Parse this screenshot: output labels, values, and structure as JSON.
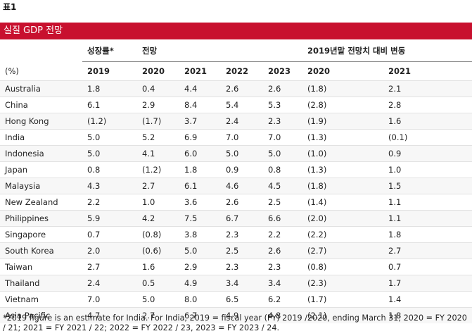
{
  "label": "표1",
  "banner_title": "실질 GDP 전망",
  "groups": {
    "growth": "성장률*",
    "forecast": "전망",
    "change": "2019년말 전망치 대비 변동"
  },
  "columns": [
    "(%)",
    "2019",
    "2020",
    "2021",
    "2022",
    "2023",
    "2020",
    "2021"
  ],
  "rows": [
    [
      "Australia",
      "1.8",
      "0.4",
      "4.4",
      "2.6",
      "2.6",
      "(1.8)",
      "2.1"
    ],
    [
      "China",
      "6.1",
      "2.9",
      "8.4",
      "5.4",
      "5.3",
      "(2.8)",
      "2.8"
    ],
    [
      "Hong Kong",
      "(1.2)",
      "(1.7)",
      "3.7",
      "2.4",
      "2.3",
      "(1.9)",
      "1.6"
    ],
    [
      "India",
      "5.0",
      "5.2",
      "6.9",
      "7.0",
      "7.0",
      "(1.3)",
      "(0.1)"
    ],
    [
      "Indonesia",
      "5.0",
      "4.1",
      "6.0",
      "5.0",
      "5.0",
      "(1.0)",
      "0.9"
    ],
    [
      "Japan",
      "0.8",
      "(1.2)",
      "1.8",
      "0.9",
      "0.8",
      "(1.3)",
      "1.0"
    ],
    [
      "Malaysia",
      "4.3",
      "2.7",
      "6.1",
      "4.6",
      "4.5",
      "(1.8)",
      "1.5"
    ],
    [
      "New Zealand",
      "2.2",
      "1.0",
      "3.6",
      "2.6",
      "2.5",
      "(1.4)",
      "1.1"
    ],
    [
      "Philippines",
      "5.9",
      "4.2",
      "7.5",
      "6.7",
      "6.6",
      "(2.0)",
      "1.1"
    ],
    [
      "Singapore",
      "0.7",
      "(0.8)",
      "3.8",
      "2.3",
      "2.2",
      "(2.2)",
      "1.8"
    ],
    [
      "South Korea",
      "2.0",
      "(0.6)",
      "5.0",
      "2.5",
      "2.6",
      "(2.7)",
      "2.7"
    ],
    [
      "Taiwan",
      "2.7",
      "1.6",
      "2.9",
      "2.3",
      "2.3",
      "(0.8)",
      "0.7"
    ],
    [
      "Thailand",
      "2.4",
      "0.5",
      "4.9",
      "3.4",
      "3.4",
      "(2.3)",
      "1.7"
    ],
    [
      "Vietnam",
      "7.0",
      "5.0",
      "8.0",
      "6.5",
      "6.2",
      "(1.7)",
      "1.4"
    ],
    [
      "Asia Pacific",
      "4.7",
      "2.7",
      "6.7",
      "4.9",
      "4.8",
      "(2.1)",
      "1.8"
    ]
  ],
  "footnote": "*2019 figure is an estimate for India. For India, 2019 = fiscal year (FY) 2019 /2020, ending March 31; 2020 = FY 2020 / 21; 2021 = FY 2021 / 22; 2022 = FY 2022 / 23, 2023 = FY 2023 / 24."
}
